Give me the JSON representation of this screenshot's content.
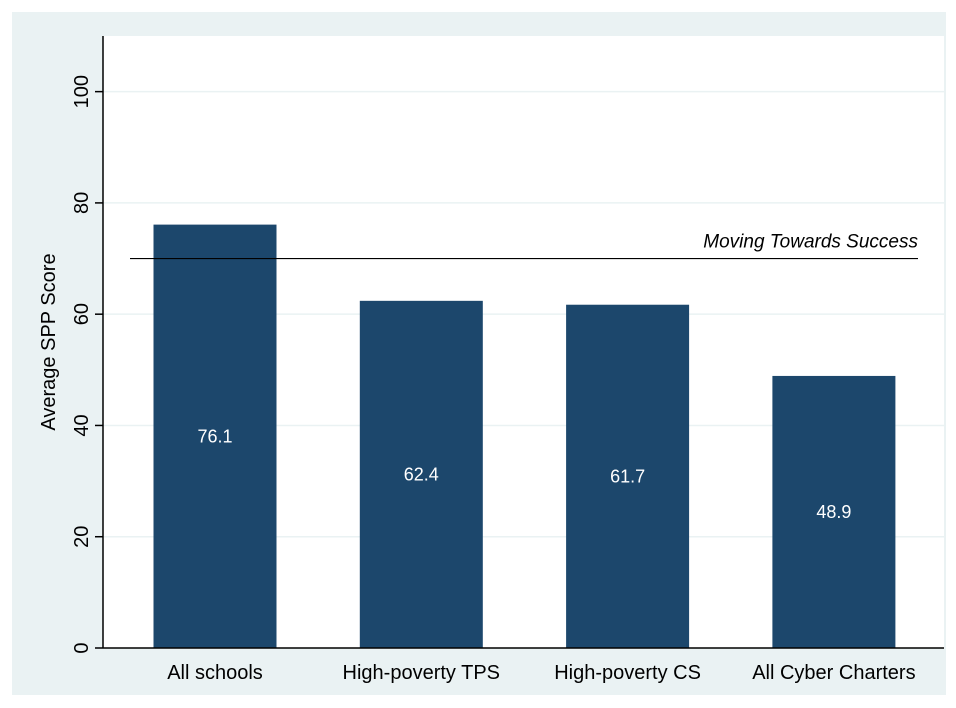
{
  "chart_data": {
    "type": "bar",
    "categories": [
      "All schools",
      "High-poverty TPS",
      "High-poverty CS",
      "All Cyber Charters"
    ],
    "values": [
      76.1,
      62.4,
      61.7,
      48.9
    ],
    "value_labels": [
      "76.1",
      "62.4",
      "61.7",
      "48.9"
    ],
    "title": "",
    "xlabel": "",
    "ylabel": "Average SPP Score",
    "ylim": [
      0,
      110
    ],
    "yticks": [
      0,
      20,
      40,
      60,
      80,
      100
    ],
    "ytick_labels": [
      "0",
      "20",
      "40",
      "60",
      "80",
      "100"
    ],
    "grid": true,
    "reference_line": {
      "value": 70,
      "label": "Moving Towards Success"
    },
    "colors": {
      "bar": "#1c476c",
      "outer_background": "#eaf2f3",
      "plot_background": "#ffffff",
      "grid": "#eaf2f3",
      "axis": "#000000",
      "value_label": "#ffffff",
      "text": "#000000"
    }
  }
}
